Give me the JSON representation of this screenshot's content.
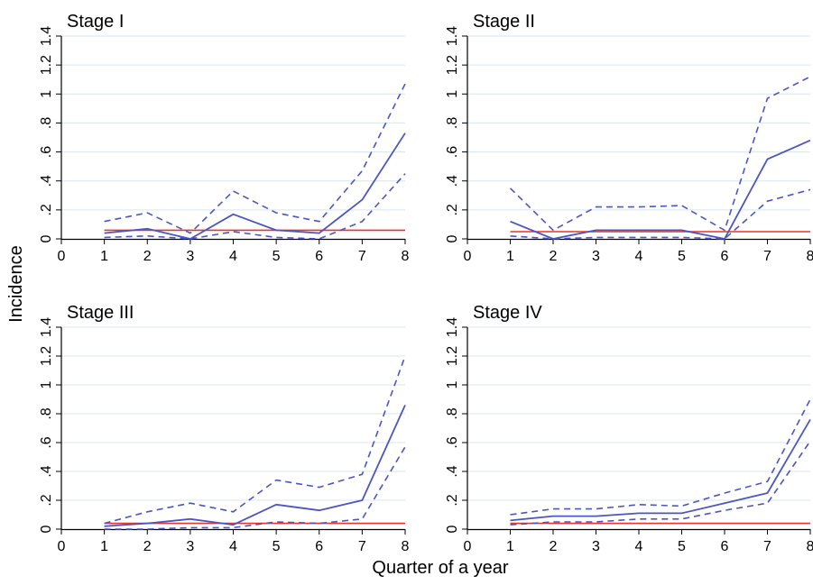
{
  "figure": {
    "ylabel": "Incidence",
    "xlabel": "Quarter of a year"
  },
  "colors": {
    "estimate": "#4c56c0",
    "ci": "#4c56c0",
    "reference": "#e8342c",
    "grid": "#d8e6ec",
    "axis": "#000000"
  },
  "chart_data": [
    {
      "type": "line",
      "title": "Stage I",
      "xlim": [
        0,
        8
      ],
      "ylim": [
        0,
        1.4
      ],
      "xticks": [
        "0",
        "1",
        "2",
        "3",
        "4",
        "5",
        "6",
        "7",
        "8"
      ],
      "yticks": [
        {
          "value": 0,
          "label": "0"
        },
        {
          "value": 0.2,
          "label": ".2"
        },
        {
          "value": 0.4,
          "label": ".4"
        },
        {
          "value": 0.6,
          "label": ".6"
        },
        {
          "value": 0.8,
          "label": ".8"
        },
        {
          "value": 1,
          "label": "1"
        },
        {
          "value": 1.2,
          "label": "1.2"
        },
        {
          "value": 1.4,
          "label": "1.4"
        }
      ],
      "grid": true,
      "x": [
        1,
        2,
        3,
        4,
        5,
        6,
        7,
        8
      ],
      "series": [
        {
          "role": "estimate",
          "values": [
            0.04,
            0.07,
            0.0,
            0.17,
            0.06,
            0.04,
            0.27,
            0.73
          ]
        },
        {
          "role": "upper",
          "values": [
            0.12,
            0.18,
            0.04,
            0.33,
            0.18,
            0.12,
            0.47,
            1.07
          ]
        },
        {
          "role": "lower",
          "values": [
            0.01,
            0.02,
            0.0,
            0.05,
            0.01,
            0.0,
            0.12,
            0.45
          ]
        },
        {
          "role": "reference",
          "values": [
            0.06,
            0.06,
            0.06,
            0.06,
            0.06,
            0.06,
            0.06,
            0.06
          ]
        }
      ]
    },
    {
      "type": "line",
      "title": "Stage II",
      "xlim": [
        0,
        8
      ],
      "ylim": [
        0,
        1.4
      ],
      "xticks": [
        "0",
        "1",
        "2",
        "3",
        "4",
        "5",
        "6",
        "7",
        "8"
      ],
      "yticks": [
        {
          "value": 0,
          "label": "0"
        },
        {
          "value": 0.2,
          "label": ".2"
        },
        {
          "value": 0.4,
          "label": ".4"
        },
        {
          "value": 0.6,
          "label": ".6"
        },
        {
          "value": 0.8,
          "label": ".8"
        },
        {
          "value": 1,
          "label": "1"
        },
        {
          "value": 1.2,
          "label": "1.2"
        },
        {
          "value": 1.4,
          "label": "1.4"
        }
      ],
      "grid": true,
      "x": [
        1,
        2,
        3,
        4,
        5,
        6,
        7,
        8
      ],
      "series": [
        {
          "role": "estimate",
          "values": [
            0.12,
            0.0,
            0.06,
            0.06,
            0.06,
            0.0,
            0.55,
            0.68
          ]
        },
        {
          "role": "upper",
          "values": [
            0.35,
            0.06,
            0.22,
            0.22,
            0.23,
            0.06,
            0.97,
            1.12
          ]
        },
        {
          "role": "lower",
          "values": [
            0.02,
            0.0,
            0.01,
            0.01,
            0.01,
            0.0,
            0.26,
            0.34
          ]
        },
        {
          "role": "reference",
          "values": [
            0.05,
            0.05,
            0.05,
            0.05,
            0.05,
            0.05,
            0.05,
            0.05
          ]
        }
      ]
    },
    {
      "type": "line",
      "title": "Stage III",
      "xlim": [
        0,
        8
      ],
      "ylim": [
        0,
        1.4
      ],
      "xticks": [
        "0",
        "1",
        "2",
        "3",
        "4",
        "5",
        "6",
        "7",
        "8"
      ],
      "yticks": [
        {
          "value": 0,
          "label": "0"
        },
        {
          "value": 0.2,
          "label": ".2"
        },
        {
          "value": 0.4,
          "label": ".4"
        },
        {
          "value": 0.6,
          "label": ".6"
        },
        {
          "value": 0.8,
          "label": ".8"
        },
        {
          "value": 1,
          "label": "1"
        },
        {
          "value": 1.2,
          "label": "1.2"
        },
        {
          "value": 1.4,
          "label": "1.4"
        }
      ],
      "grid": true,
      "x": [
        1,
        2,
        3,
        4,
        5,
        6,
        7,
        8
      ],
      "series": [
        {
          "role": "estimate",
          "values": [
            0.02,
            0.04,
            0.07,
            0.03,
            0.17,
            0.13,
            0.2,
            0.86
          ]
        },
        {
          "role": "upper",
          "values": [
            0.04,
            0.12,
            0.18,
            0.12,
            0.34,
            0.29,
            0.38,
            1.2
          ]
        },
        {
          "role": "lower",
          "values": [
            0.0,
            0.0,
            0.01,
            0.01,
            0.05,
            0.04,
            0.07,
            0.57
          ]
        },
        {
          "role": "reference",
          "values": [
            0.04,
            0.04,
            0.04,
            0.04,
            0.04,
            0.04,
            0.04,
            0.04
          ]
        }
      ]
    },
    {
      "type": "line",
      "title": "Stage IV",
      "xlim": [
        0,
        8
      ],
      "ylim": [
        0,
        1.4
      ],
      "xticks": [
        "0",
        "1",
        "2",
        "3",
        "4",
        "5",
        "6",
        "7",
        "8"
      ],
      "yticks": [
        {
          "value": 0,
          "label": "0"
        },
        {
          "value": 0.2,
          "label": ".2"
        },
        {
          "value": 0.4,
          "label": ".4"
        },
        {
          "value": 0.6,
          "label": ".6"
        },
        {
          "value": 0.8,
          "label": ".8"
        },
        {
          "value": 1,
          "label": "1"
        },
        {
          "value": 1.2,
          "label": "1.2"
        },
        {
          "value": 1.4,
          "label": "1.4"
        }
      ],
      "grid": true,
      "x": [
        1,
        2,
        3,
        4,
        5,
        6,
        7,
        8
      ],
      "series": [
        {
          "role": "estimate",
          "values": [
            0.06,
            0.09,
            0.09,
            0.11,
            0.11,
            0.18,
            0.25,
            0.76
          ]
        },
        {
          "role": "upper",
          "values": [
            0.1,
            0.14,
            0.14,
            0.17,
            0.16,
            0.25,
            0.33,
            0.9
          ]
        },
        {
          "role": "lower",
          "values": [
            0.03,
            0.05,
            0.05,
            0.07,
            0.07,
            0.13,
            0.18,
            0.61
          ]
        },
        {
          "role": "reference",
          "values": [
            0.04,
            0.04,
            0.04,
            0.04,
            0.04,
            0.04,
            0.04,
            0.04
          ]
        }
      ]
    }
  ]
}
